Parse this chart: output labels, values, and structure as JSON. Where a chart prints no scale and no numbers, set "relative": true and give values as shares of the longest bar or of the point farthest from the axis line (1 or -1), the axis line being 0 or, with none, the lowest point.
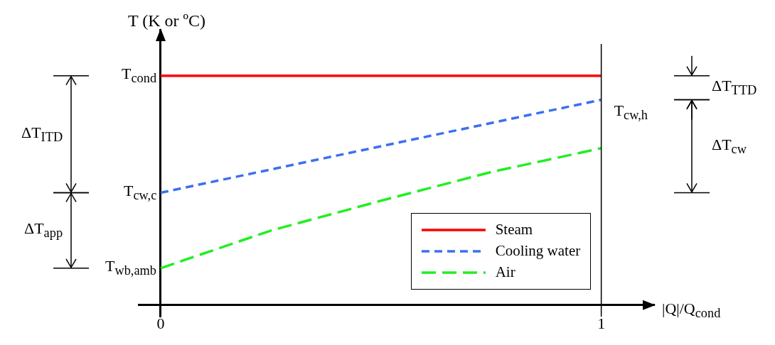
{
  "chart_data": {
    "type": "line",
    "relative": true,
    "ylabel": "T (K or ºC)",
    "xlabel": "|Q|/Q$_{cond}$",
    "xlim": [
      -0.05,
      1.12
    ],
    "xticks": [
      0,
      1
    ],
    "marker": "none",
    "grid": false,
    "legend": "bottom right",
    "series": [
      {
        "name": "Steam",
        "color": "#ff0000",
        "x": [
          0,
          1
        ],
        "values": [
          1,
          1
        ],
        "line_style": "solid"
      },
      {
        "name": "Cooling water",
        "color": "#3d6ff2",
        "x": [
          0,
          1
        ],
        "values": [
          0.49,
          0.895
        ],
        "line_style": "dashed"
      },
      {
        "name": "Air",
        "color": "#22ee22",
        "x": [
          0,
          0.25,
          0.5,
          0.75,
          1
        ],
        "values": [
          0.161,
          0.325,
          0.455,
          0.58,
          0.684
        ],
        "line_style": "dashed"
      }
    ],
    "ref_lines": [
      {
        "axis": "x",
        "value": 1,
        "color": "#000000"
      }
    ],
    "annotations": [
      "T$_{cond}$",
      "T$_{cw,c}$",
      "T$_{wb,amb}$",
      "T$_{cw,h}$",
      "ΔT$_{ITD}$",
      "ΔT$_{app}$",
      "ΔT$_{TTD}$",
      "ΔT$_{cw}$"
    ]
  }
}
